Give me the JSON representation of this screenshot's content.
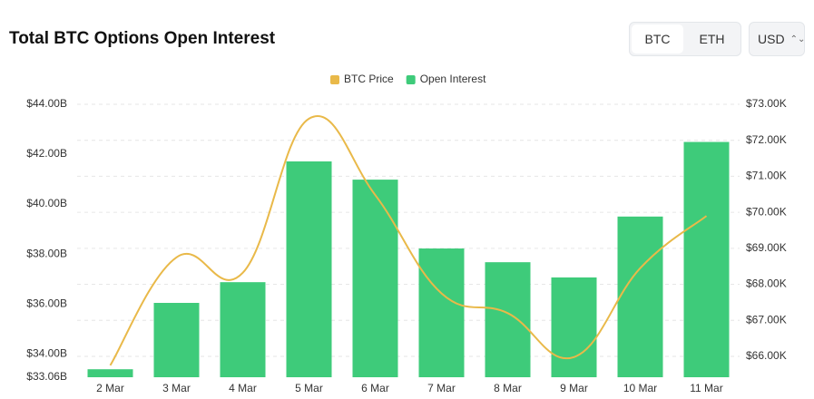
{
  "controls": {
    "assets": [
      "BTC",
      "ETH"
    ],
    "currency": "USD"
  },
  "chart_data": {
    "type": "bar",
    "title": "Total BTC Options Open Interest",
    "categories": [
      "2 Mar",
      "3 Mar",
      "4 Mar",
      "5 Mar",
      "6 Mar",
      "7 Mar",
      "8 Mar",
      "9 Mar",
      "10 Mar",
      "11 Mar"
    ],
    "series": [
      {
        "name": "BTC Price",
        "type": "line",
        "axis": "y2",
        "color": "#e9b949",
        "values": [
          65.75,
          68.75,
          68.32,
          72.6,
          70.48,
          67.75,
          67.2,
          65.98,
          68.45,
          69.9
        ]
      },
      {
        "name": "Open Interest",
        "type": "bar",
        "color": "#3ecb7a",
        "values": [
          33.38,
          36.04,
          36.87,
          41.71,
          40.98,
          38.22,
          37.67,
          37.06,
          39.5,
          42.49
        ]
      }
    ],
    "ylim": [
      33.06,
      44
    ],
    "yticks": [
      {
        "value": 33.06,
        "label": "$33.06B"
      },
      {
        "value": 34,
        "label": "$34.00B"
      },
      {
        "value": 36,
        "label": "$36.00B"
      },
      {
        "value": 38,
        "label": "$38.00B"
      },
      {
        "value": 40,
        "label": "$40.00B"
      },
      {
        "value": 42,
        "label": "$42.00B"
      },
      {
        "value": 44,
        "label": "$44.00B"
      }
    ],
    "y2lim": [
      65.42,
      73
    ],
    "y2ticks": [
      {
        "value": 66,
        "label": "$66.00K"
      },
      {
        "value": 67,
        "label": "$67.00K"
      },
      {
        "value": 68,
        "label": "$68.00K"
      },
      {
        "value": 69,
        "label": "$69.00K"
      },
      {
        "value": 70,
        "label": "$70.00K"
      },
      {
        "value": 71,
        "label": "$71.00K"
      },
      {
        "value": 72,
        "label": "$72.00K"
      },
      {
        "value": 73,
        "label": "$73.00K"
      }
    ],
    "grid": true
  }
}
